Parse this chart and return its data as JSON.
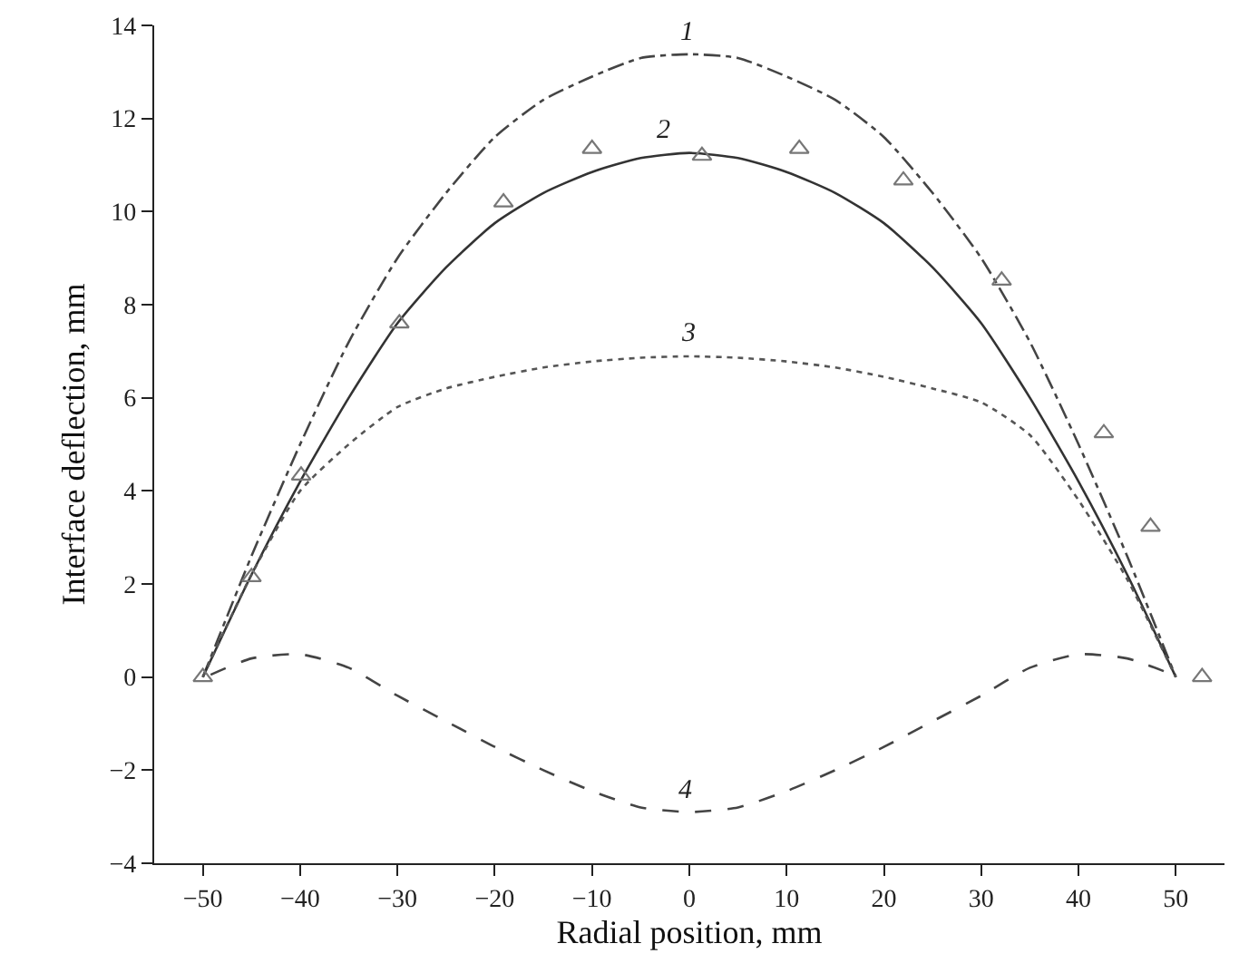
{
  "chart_data": {
    "type": "line",
    "xlabel": "Radial position, mm",
    "ylabel": "Interface deflection, mm",
    "xlim": [
      -55,
      55
    ],
    "xticks": [
      -50,
      -40,
      -30,
      -20,
      -10,
      0,
      10,
      20,
      30,
      40,
      50
    ],
    "ylim": [
      -4,
      14
    ],
    "yticks": [
      -4,
      -2,
      0,
      2,
      4,
      6,
      8,
      10,
      12,
      14
    ],
    "grid": false,
    "x": [
      -50,
      -45,
      -40,
      -35,
      -30,
      -25,
      -20,
      -15,
      -10,
      -5,
      0,
      5,
      10,
      15,
      20,
      25,
      30,
      35,
      40,
      45,
      50
    ],
    "series": [
      {
        "color": "#444444",
        "line_style": "dashdot",
        "marker": "none",
        "values": [
          0,
          2.6,
          5.0,
          7.2,
          9.0,
          10.4,
          11.6,
          12.4,
          12.9,
          13.3,
          13.38,
          13.3,
          12.9,
          12.4,
          11.6,
          10.4,
          9.0,
          7.2,
          5.0,
          2.6,
          0
        ]
      },
      {
        "color": "#333333",
        "line_style": "solid",
        "marker": "none",
        "values": [
          0,
          2.2,
          4.2,
          6.0,
          7.6,
          8.8,
          9.75,
          10.4,
          10.85,
          11.15,
          11.26,
          11.15,
          10.85,
          10.4,
          9.75,
          8.8,
          7.6,
          6.0,
          4.2,
          2.2,
          0
        ]
      },
      {
        "color": "#555555",
        "line_style": "dotted",
        "marker": "none",
        "values": [
          0,
          2.2,
          4.0,
          5.0,
          5.8,
          6.2,
          6.45,
          6.65,
          6.78,
          6.86,
          6.89,
          6.86,
          6.78,
          6.65,
          6.45,
          6.2,
          5.9,
          5.2,
          3.8,
          2.1,
          0
        ]
      },
      {
        "color": "#444444",
        "line_style": "dashed",
        "marker": "none",
        "x": [
          -49.2,
          -45,
          -40,
          -35,
          -30,
          -25,
          -20,
          -15,
          -10,
          -5,
          0,
          5,
          10,
          15,
          20,
          25,
          30,
          35,
          40,
          45,
          49.7
        ],
        "values": [
          0.05,
          0.4,
          0.49,
          0.2,
          -0.4,
          -0.95,
          -1.5,
          -2.0,
          -2.45,
          -2.8,
          -2.9,
          -2.8,
          -2.45,
          -2.0,
          -1.5,
          -0.95,
          -0.4,
          0.2,
          0.49,
          0.4,
          0.05
        ]
      },
      {
        "type": "scatter",
        "color": "#777777",
        "marker": "triangle",
        "x": [
          -50,
          -45,
          -39.9,
          -29.8,
          -19.1,
          -10.0,
          1.3,
          11.3,
          22.0,
          32.1,
          42.6,
          47.4,
          52.7
        ],
        "values": [
          0,
          2.15,
          4.33,
          7.6,
          10.2,
          11.35,
          11.2,
          11.35,
          10.67,
          8.52,
          5.24,
          3.23,
          0
        ]
      }
    ],
    "annotations": [
      {
        "text": "1",
        "x": -0.2,
        "y": 13.38
      },
      {
        "text": "2",
        "x": -2.7,
        "y": 11.26
      },
      {
        "text": "3",
        "x": -0.1,
        "y": 6.89
      },
      {
        "text": "4",
        "x": -0.3,
        "y": -2.9
      }
    ]
  }
}
